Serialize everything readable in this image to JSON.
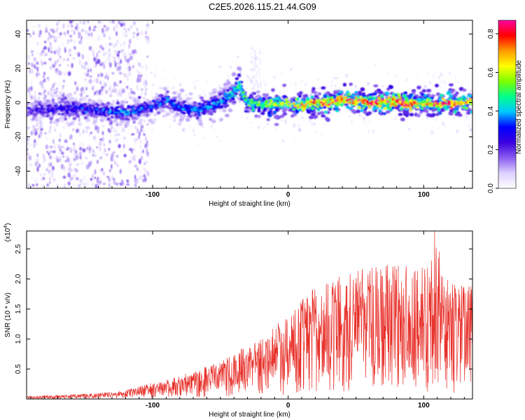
{
  "colors": {
    "signal_line": "#e8302a",
    "axis": "#000000",
    "colorbar_stops": [
      "#ffffff",
      "#dcd0ff",
      "#8a5cf0",
      "#3a00e0",
      "#0000ff",
      "#00c8ff",
      "#00ff8c",
      "#7cff00",
      "#ffff00",
      "#ff9a00",
      "#ff0000",
      "#ff00a0"
    ]
  },
  "chart_data": [
    {
      "type": "heatmap",
      "title": "C2E5.2026.115.21.44.G09",
      "xlabel": "Height of straight line (km)",
      "ylabel": "Frequency (Hz)",
      "xlim": [
        -193,
        136
      ],
      "ylim": [
        -50,
        48
      ],
      "x_ticks": [
        -100,
        0,
        100
      ],
      "x_tick_labels": [
        "-100",
        "0",
        "100"
      ],
      "y_ticks": [
        -40,
        -20,
        0,
        20,
        40
      ],
      "y_tick_labels": [
        "-40",
        "-20",
        "0",
        "20",
        "40"
      ],
      "colorbar": {
        "label": "Normalized spectral amplitude",
        "range": [
          0.0,
          0.87
        ],
        "ticks": [
          0.0,
          0.2,
          0.4,
          0.6,
          0.8
        ],
        "tick_labels": [
          "0.0",
          "0.2",
          "0.4",
          "0.6",
          "0.8"
        ]
      },
      "ridge": [
        {
          "x": -190,
          "f": -4,
          "amp": 0.22
        },
        {
          "x": -175,
          "f": -4,
          "amp": 0.25
        },
        {
          "x": -160,
          "f": -3,
          "amp": 0.28
        },
        {
          "x": -145,
          "f": -4,
          "amp": 0.3
        },
        {
          "x": -130,
          "f": -5,
          "amp": 0.32
        },
        {
          "x": -120,
          "f": -6,
          "amp": 0.34
        },
        {
          "x": -110,
          "f": -4,
          "amp": 0.32
        },
        {
          "x": -100,
          "f": -2,
          "amp": 0.3
        },
        {
          "x": -90,
          "f": 1,
          "amp": 0.33
        },
        {
          "x": -80,
          "f": -3,
          "amp": 0.35
        },
        {
          "x": -70,
          "f": -4,
          "amp": 0.33
        },
        {
          "x": -60,
          "f": -3,
          "amp": 0.34
        },
        {
          "x": -50,
          "f": 0,
          "amp": 0.35
        },
        {
          "x": -42,
          "f": 5,
          "amp": 0.4
        },
        {
          "x": -36,
          "f": 10,
          "amp": 0.42
        },
        {
          "x": -30,
          "f": 0,
          "amp": 0.45
        },
        {
          "x": -20,
          "f": -1,
          "amp": 0.5
        },
        {
          "x": -10,
          "f": -1,
          "amp": 0.55
        },
        {
          "x": 0,
          "f": -1,
          "amp": 0.6
        },
        {
          "x": 10,
          "f": -2,
          "amp": 0.6
        },
        {
          "x": 20,
          "f": 0,
          "amp": 0.65
        },
        {
          "x": 30,
          "f": 0,
          "amp": 0.7
        },
        {
          "x": 40,
          "f": 1,
          "amp": 0.7
        },
        {
          "x": 50,
          "f": 1,
          "amp": 0.72
        },
        {
          "x": 60,
          "f": 0,
          "amp": 0.74
        },
        {
          "x": 70,
          "f": 0,
          "amp": 0.72
        },
        {
          "x": 80,
          "f": 1,
          "amp": 0.8
        },
        {
          "x": 90,
          "f": -1,
          "amp": 0.7
        },
        {
          "x": 100,
          "f": 0,
          "amp": 0.6
        },
        {
          "x": 110,
          "f": -1,
          "amp": 0.72
        },
        {
          "x": 120,
          "f": 0,
          "amp": 0.75
        },
        {
          "x": 130,
          "f": 0,
          "amp": 0.65
        }
      ]
    },
    {
      "type": "line",
      "title": "",
      "xlabel": "Height of straight line (km)",
      "ylabel": "SNR (10 * v/v)",
      "y_multiplier_label": "(x10",
      "y_multiplier_exponent": "4",
      "y_multiplier_close": ")",
      "xlim": [
        -193,
        136
      ],
      "ylim": [
        0,
        28000
      ],
      "x_ticks": [
        -100,
        0,
        100
      ],
      "x_tick_labels": [
        "-100",
        "0",
        "100"
      ],
      "y_ticks": [
        5000,
        10000,
        15000,
        20000,
        25000
      ],
      "y_tick_labels": [
        "0.5",
        "1.0",
        "1.5",
        "2.0",
        "2.5"
      ],
      "series": [
        {
          "name": "SNR",
          "envelope": [
            {
              "x": -193,
              "y": 400
            },
            {
              "x": -160,
              "y": 700
            },
            {
              "x": -140,
              "y": 900
            },
            {
              "x": -120,
              "y": 1400
            },
            {
              "x": -100,
              "y": 2500
            },
            {
              "x": -80,
              "y": 3500
            },
            {
              "x": -60,
              "y": 5000
            },
            {
              "x": -40,
              "y": 7000
            },
            {
              "x": -20,
              "y": 9500
            },
            {
              "x": 0,
              "y": 13000
            },
            {
              "x": 20,
              "y": 17000
            },
            {
              "x": 40,
              "y": 19000
            },
            {
              "x": 60,
              "y": 20000
            },
            {
              "x": 80,
              "y": 20500
            },
            {
              "x": 100,
              "y": 20000
            },
            {
              "x": 110,
              "y": 24000
            },
            {
              "x": 120,
              "y": 18000
            },
            {
              "x": 136,
              "y": 17000
            }
          ],
          "peak": {
            "x": 108,
            "y": 28000
          }
        }
      ]
    }
  ]
}
